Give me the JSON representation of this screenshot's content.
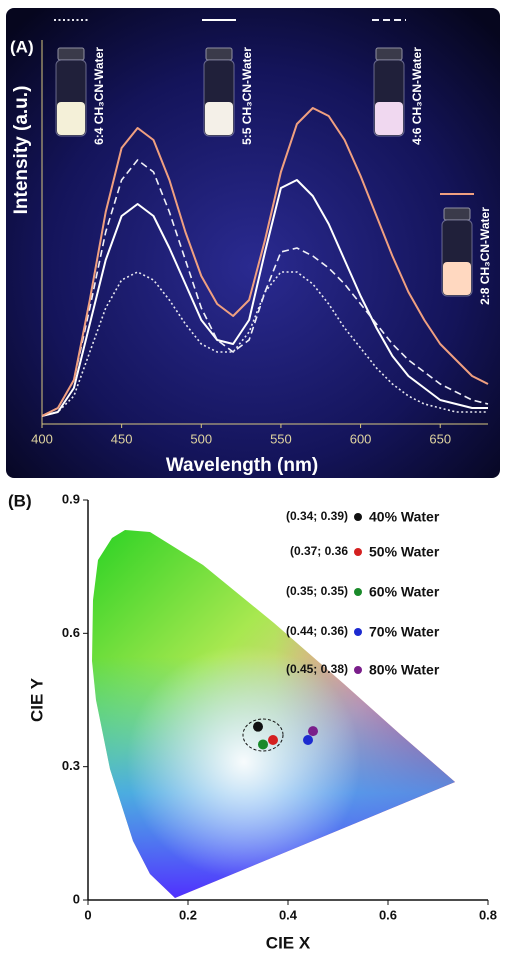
{
  "chart_data": [
    {
      "type": "line",
      "panel_label": "(A)",
      "x_label": "Wavelength (nm)",
      "y_label": "Intensity (a.u.)",
      "xlim": [
        400,
        680
      ],
      "xticks": [
        400,
        450,
        500,
        550,
        600,
        650
      ],
      "ylim": [
        0,
        1
      ],
      "x": [
        400,
        410,
        420,
        430,
        440,
        450,
        460,
        470,
        480,
        490,
        500,
        510,
        520,
        530,
        540,
        550,
        560,
        570,
        580,
        590,
        600,
        610,
        620,
        630,
        640,
        650,
        660,
        670,
        680
      ],
      "series": [
        {
          "name": "6:4 CH₃CN-Water",
          "color": "#e8e8f0",
          "dash": "dotted",
          "values": [
            0.01,
            0.02,
            0.06,
            0.17,
            0.28,
            0.35,
            0.37,
            0.35,
            0.3,
            0.24,
            0.19,
            0.17,
            0.17,
            0.22,
            0.32,
            0.37,
            0.37,
            0.34,
            0.29,
            0.23,
            0.18,
            0.13,
            0.09,
            0.06,
            0.04,
            0.03,
            0.02,
            0.02,
            0.02
          ]
        },
        {
          "name": "5:5 CH₃CN-Water",
          "color": "#ffffff",
          "dash": "solid",
          "values": [
            0.01,
            0.02,
            0.08,
            0.24,
            0.4,
            0.51,
            0.54,
            0.51,
            0.43,
            0.34,
            0.25,
            0.2,
            0.19,
            0.25,
            0.42,
            0.58,
            0.6,
            0.56,
            0.49,
            0.4,
            0.31,
            0.23,
            0.16,
            0.11,
            0.08,
            0.05,
            0.04,
            0.03,
            0.03
          ]
        },
        {
          "name": "4:6 CH₃CN-Water",
          "color": "#f0f0f8",
          "dash": "dashed",
          "values": [
            0.01,
            0.03,
            0.1,
            0.28,
            0.47,
            0.6,
            0.65,
            0.62,
            0.52,
            0.4,
            0.28,
            0.2,
            0.17,
            0.2,
            0.32,
            0.42,
            0.43,
            0.41,
            0.38,
            0.34,
            0.29,
            0.24,
            0.19,
            0.15,
            0.12,
            0.09,
            0.07,
            0.05,
            0.04
          ]
        },
        {
          "name": "2:8 CH₃CN-Water",
          "color": "#f0a080",
          "dash": "solid",
          "values": [
            0.01,
            0.03,
            0.1,
            0.3,
            0.52,
            0.68,
            0.73,
            0.7,
            0.6,
            0.47,
            0.36,
            0.29,
            0.26,
            0.3,
            0.45,
            0.62,
            0.74,
            0.78,
            0.76,
            0.7,
            0.61,
            0.51,
            0.41,
            0.32,
            0.25,
            0.19,
            0.15,
            0.11,
            0.09
          ]
        }
      ]
    },
    {
      "type": "scatter",
      "panel_label": "(B)",
      "x_label": "CIE X",
      "y_label": "CIE Y",
      "xlim": [
        0,
        0.8
      ],
      "xticks": [
        0,
        0.2,
        0.4,
        0.6,
        0.8
      ],
      "ylim": [
        0,
        0.9
      ],
      "yticks": [
        0,
        0.3,
        0.6,
        0.9
      ],
      "series": [
        {
          "name": "40% Water",
          "color": "#111111",
          "x": [
            0.34
          ],
          "values": [
            0.39
          ],
          "labels": [
            "(0.34; 0.39)"
          ]
        },
        {
          "name": "50% Water",
          "color": "#d42020",
          "x": [
            0.37
          ],
          "values": [
            0.36
          ],
          "labels": [
            "(0.37; 0.36"
          ]
        },
        {
          "name": "60% Water",
          "color": "#1a8a2a",
          "x": [
            0.35
          ],
          "values": [
            0.35
          ],
          "labels": [
            "(0.35; 0.35)"
          ]
        },
        {
          "name": "70% Water",
          "color": "#1c2ad0",
          "x": [
            0.44
          ],
          "values": [
            0.36
          ],
          "labels": [
            "(0.44; 0.36)"
          ]
        },
        {
          "name": "80% Water",
          "color": "#7a1e8a",
          "x": [
            0.45
          ],
          "values": [
            0.38
          ],
          "labels": [
            "(0.45; 0.38)"
          ]
        }
      ]
    }
  ]
}
